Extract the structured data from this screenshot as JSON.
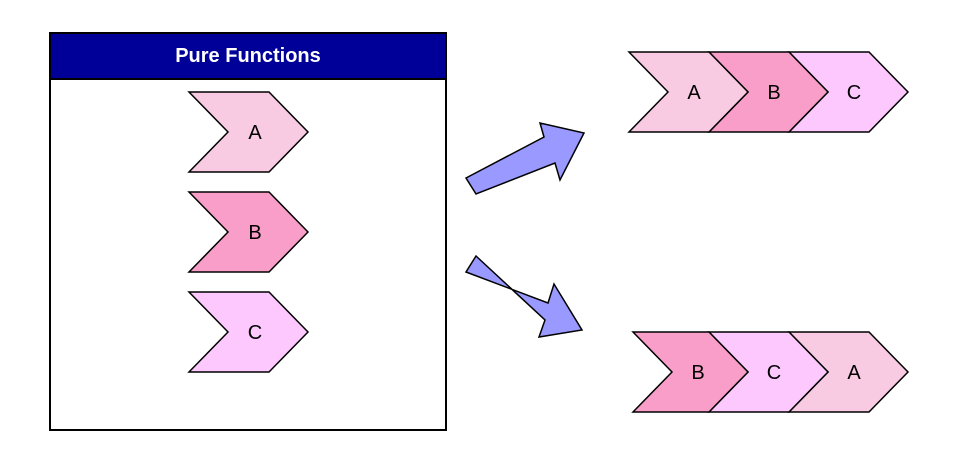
{
  "panel": {
    "title": "Pure Functions",
    "header_color": "#000099",
    "functions": [
      {
        "label": "A",
        "color": "#f9cbe3"
      },
      {
        "label": "B",
        "color": "#f99ec9"
      },
      {
        "label": "C",
        "color": "#fdc8fd"
      }
    ]
  },
  "pipelines": [
    {
      "steps": [
        {
          "label": "A",
          "color": "#f9cbe3"
        },
        {
          "label": "B",
          "color": "#f99ec9"
        },
        {
          "label": "C",
          "color": "#fdc8fd"
        }
      ]
    },
    {
      "steps": [
        {
          "label": "B",
          "color": "#f99ec9"
        },
        {
          "label": "C",
          "color": "#fdc8fd"
        },
        {
          "label": "A",
          "color": "#f9cbe3"
        }
      ]
    }
  ],
  "arrow_color": "#9999ff"
}
